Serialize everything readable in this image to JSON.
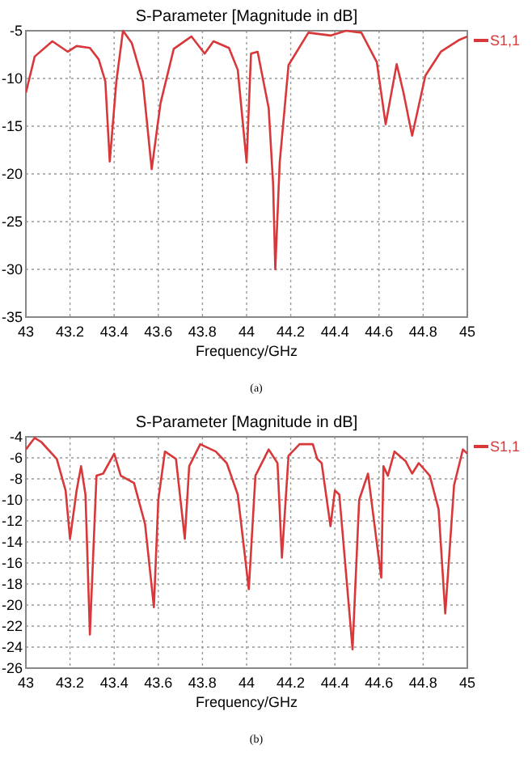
{
  "chart_data": [
    {
      "type": "line",
      "title": "S-Parameter [Magnitude in dB]",
      "xlabel": "Frequency/GHz",
      "annotations": [
        "(a)"
      ],
      "legend": "right",
      "grid": true,
      "line_style": "solid",
      "marker": "none",
      "xlim": [
        43,
        45
      ],
      "xticks": [
        43,
        43.2,
        43.4,
        43.6,
        43.8,
        44,
        44.2,
        44.4,
        44.6,
        44.8,
        45
      ],
      "ylim": [
        -35,
        -5
      ],
      "yticks": [
        -35,
        -30,
        -25,
        -20,
        -15,
        -10,
        -5
      ],
      "series": [
        {
          "name": "S1,1",
          "color": "#d9383a",
          "x": [
            43,
            43.04,
            43.12,
            43.19,
            43.23,
            43.29,
            43.33,
            43.36,
            43.38,
            43.41,
            43.44,
            43.48,
            43.53,
            43.57,
            43.61,
            43.67,
            43.75,
            43.81,
            43.85,
            43.92,
            43.96,
            44,
            44.02,
            44.05,
            44.1,
            44.12,
            44.13,
            44.15,
            44.19,
            44.28,
            44.38,
            44.45,
            44.52,
            44.59,
            44.63,
            44.68,
            44.71,
            44.75,
            44.81,
            44.88,
            44.96,
            45
          ],
          "values": [
            -11.5,
            -7.7,
            -6.1,
            -7.2,
            -6.6,
            -6.8,
            -8,
            -10.3,
            -18.7,
            -10.3,
            -5,
            -6.3,
            -10.3,
            -19.5,
            -12.6,
            -6.9,
            -5.6,
            -7.4,
            -6.1,
            -6.8,
            -9.1,
            -18.8,
            -7.4,
            -7.2,
            -13.1,
            -21,
            -30,
            -18.8,
            -8.6,
            -5.2,
            -5.5,
            -5,
            -5.2,
            -8.3,
            -14.8,
            -8.5,
            -11.4,
            -16,
            -9.7,
            -7.2,
            -6,
            -5.6
          ]
        }
      ]
    },
    {
      "type": "line",
      "title": "S-Parameter [Magnitude in dB]",
      "xlabel": "Frequency/GHz",
      "annotations": [
        "(b)"
      ],
      "legend": "right",
      "grid": true,
      "line_style": "solid",
      "marker": "none",
      "xlim": [
        43,
        45
      ],
      "xticks": [
        43,
        43.2,
        43.4,
        43.6,
        43.8,
        44,
        44.2,
        44.4,
        44.6,
        44.8,
        45
      ],
      "ylim": [
        -26,
        -4
      ],
      "yticks": [
        -26,
        -24,
        -22,
        -20,
        -18,
        -16,
        -14,
        -12,
        -10,
        -8,
        -6,
        -4
      ],
      "series": [
        {
          "name": "S1,1",
          "color": "#d9383a",
          "x": [
            43,
            43.04,
            43.07,
            43.14,
            43.18,
            43.2,
            43.23,
            43.25,
            43.27,
            43.29,
            43.32,
            43.35,
            43.4,
            43.43,
            43.49,
            43.54,
            43.58,
            43.6,
            43.63,
            43.68,
            43.72,
            43.74,
            43.79,
            43.86,
            43.91,
            43.96,
            44.01,
            44.04,
            44.1,
            44.14,
            44.16,
            44.19,
            44.24,
            44.3,
            44.32,
            44.34,
            44.38,
            44.4,
            44.42,
            44.48,
            44.51,
            44.55,
            44.61,
            44.62,
            44.64,
            44.67,
            44.72,
            44.75,
            44.78,
            44.83,
            44.87,
            44.9,
            44.94,
            44.98,
            45
          ],
          "values": [
            -5.2,
            -4.1,
            -4.5,
            -6.1,
            -9.1,
            -13.7,
            -9.1,
            -6.8,
            -9.5,
            -22.8,
            -7.7,
            -7.5,
            -5.6,
            -7.7,
            -8.4,
            -12.3,
            -20.2,
            -10,
            -5.4,
            -6.1,
            -13.7,
            -6.8,
            -4.7,
            -5.4,
            -6.5,
            -9.5,
            -18.5,
            -7.7,
            -5.2,
            -6.5,
            -15.5,
            -5.8,
            -4.7,
            -4.7,
            -6.1,
            -6.5,
            -12.5,
            -9.1,
            -9.5,
            -24.2,
            -10,
            -7.5,
            -17.4,
            -6.8,
            -7.7,
            -5.4,
            -6.3,
            -7.5,
            -6.5,
            -7.7,
            -10.9,
            -20.8,
            -8.6,
            -5.2,
            -5.6
          ]
        }
      ]
    }
  ]
}
